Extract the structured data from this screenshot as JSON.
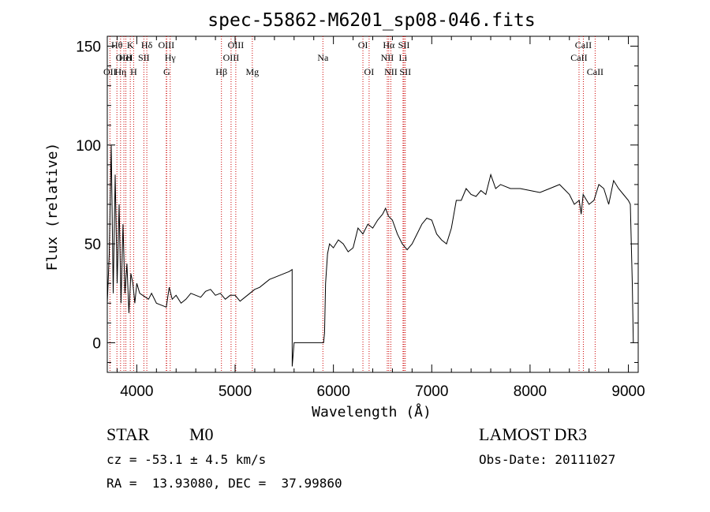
{
  "chart_data": {
    "type": "line",
    "title": "spec-55862-M6201_sp08-046.fits",
    "xlabel": "Wavelength (Å)",
    "ylabel": "Flux (relative)",
    "xlim": [
      3700,
      9100
    ],
    "ylim": [
      -15,
      155
    ],
    "xticks": [
      4000,
      5000,
      6000,
      7000,
      8000,
      9000
    ],
    "yticks": [
      0,
      50,
      100,
      150
    ],
    "series": [
      {
        "name": "flux",
        "x": [
          3700,
          3720,
          3740,
          3760,
          3780,
          3800,
          3820,
          3840,
          3860,
          3880,
          3900,
          3920,
          3940,
          3960,
          3980,
          4000,
          4030,
          4060,
          4090,
          4120,
          4150,
          4200,
          4250,
          4300,
          4330,
          4360,
          4400,
          4450,
          4500,
          4550,
          4600,
          4650,
          4700,
          4750,
          4800,
          4850,
          4900,
          4950,
          5000,
          5050,
          5100,
          5150,
          5200,
          5250,
          5300,
          5350,
          5400,
          5450,
          5500,
          5550,
          5580,
          5581,
          5600,
          5650,
          5700,
          5750,
          5800,
          5850,
          5900,
          5910,
          5920,
          5940,
          5960,
          6000,
          6050,
          6100,
          6150,
          6200,
          6250,
          6300,
          6350,
          6400,
          6450,
          6500,
          6530,
          6560,
          6600,
          6650,
          6700,
          6750,
          6800,
          6850,
          6900,
          6950,
          7000,
          7050,
          7100,
          7150,
          7200,
          7250,
          7300,
          7350,
          7400,
          7450,
          7500,
          7550,
          7600,
          7650,
          7700,
          7800,
          7900,
          8000,
          8100,
          8200,
          8300,
          8400,
          8450,
          8500,
          8520,
          8540,
          8600,
          8650,
          8700,
          8750,
          8800,
          8850,
          8900,
          8950,
          9000,
          9020,
          9040,
          9050,
          9055
        ],
        "y": [
          20,
          45,
          100,
          25,
          85,
          30,
          70,
          20,
          60,
          25,
          40,
          15,
          35,
          30,
          20,
          30,
          25,
          24,
          23,
          22,
          25,
          20,
          19,
          18,
          28,
          22,
          24,
          20,
          22,
          25,
          24,
          23,
          26,
          27,
          24,
          25,
          22,
          24,
          24,
          21,
          23,
          25,
          27,
          28,
          30,
          32,
          33,
          34,
          35,
          36,
          37,
          -12,
          0,
          0,
          0,
          0,
          0,
          0,
          0,
          5,
          30,
          45,
          50,
          48,
          52,
          50,
          46,
          48,
          58,
          55,
          60,
          58,
          62,
          65,
          68,
          64,
          62,
          55,
          50,
          47,
          50,
          55,
          60,
          63,
          62,
          55,
          52,
          50,
          58,
          72,
          72,
          78,
          75,
          74,
          77,
          75,
          85,
          78,
          80,
          78,
          78,
          77,
          76,
          78,
          80,
          75,
          70,
          72,
          65,
          75,
          70,
          72,
          80,
          78,
          70,
          82,
          78,
          75,
          72,
          70,
          30,
          0,
          0
        ]
      }
    ],
    "spectral_lines": [
      {
        "label": "OII",
        "wavelength": 3727,
        "row": 3
      },
      {
        "label": "Hθ",
        "wavelength": 3798,
        "row": 1
      },
      {
        "label": "Hη",
        "wavelength": 3835,
        "row": 3
      },
      {
        "label": "OIII",
        "wavelength": 3869,
        "row": 2
      },
      {
        "label": "HeI",
        "wavelength": 3889,
        "row": 2
      },
      {
        "label": "K",
        "wavelength": 3934,
        "row": 1
      },
      {
        "label": "H",
        "wavelength": 3968,
        "row": 3
      },
      {
        "label": "SII",
        "wavelength": 4072,
        "row": 2
      },
      {
        "label": "Hδ",
        "wavelength": 4102,
        "row": 1
      },
      {
        "label": "OIII",
        "wavelength": 4300,
        "row": 1
      },
      {
        "label": "G",
        "wavelength": 4304,
        "row": 3
      },
      {
        "label": "Hγ",
        "wavelength": 4340,
        "row": 2
      },
      {
        "label": "Hβ",
        "wavelength": 4861,
        "row": 3
      },
      {
        "label": "OIII",
        "wavelength": 4959,
        "row": 2
      },
      {
        "label": "OIII",
        "wavelength": 5007,
        "row": 1
      },
      {
        "label": "Mg",
        "wavelength": 5175,
        "row": 3
      },
      {
        "label": "Na",
        "wavelength": 5893,
        "row": 2
      },
      {
        "label": "OI",
        "wavelength": 6300,
        "row": 1
      },
      {
        "label": "OI",
        "wavelength": 6363,
        "row": 3
      },
      {
        "label": "NII",
        "wavelength": 6548,
        "row": 2
      },
      {
        "label": "Hα",
        "wavelength": 6563,
        "row": 1
      },
      {
        "label": "NII",
        "wavelength": 6584,
        "row": 3
      },
      {
        "label": "SII",
        "wavelength": 6717,
        "row": 1
      },
      {
        "label": "Li",
        "wavelength": 6708,
        "row": 2
      },
      {
        "label": "SII",
        "wavelength": 6731,
        "row": 3
      },
      {
        "label": "CaII",
        "wavelength": 8498,
        "row": 2
      },
      {
        "label": "CaII",
        "wavelength": 8542,
        "row": 1
      },
      {
        "label": "CaII",
        "wavelength": 8662,
        "row": 3
      }
    ]
  },
  "info": {
    "object_class": "STAR",
    "subclass": "M0",
    "survey": "LAMOST DR3",
    "velocity": "cz = -53.1 ± 4.5 km/s",
    "obs_date": "Obs-Date: 20111027",
    "coords": "RA =  13.93080, DEC =  37.99860"
  },
  "colors": {
    "line": "#000000",
    "marker": "#cc0000",
    "axes": "#000000"
  }
}
